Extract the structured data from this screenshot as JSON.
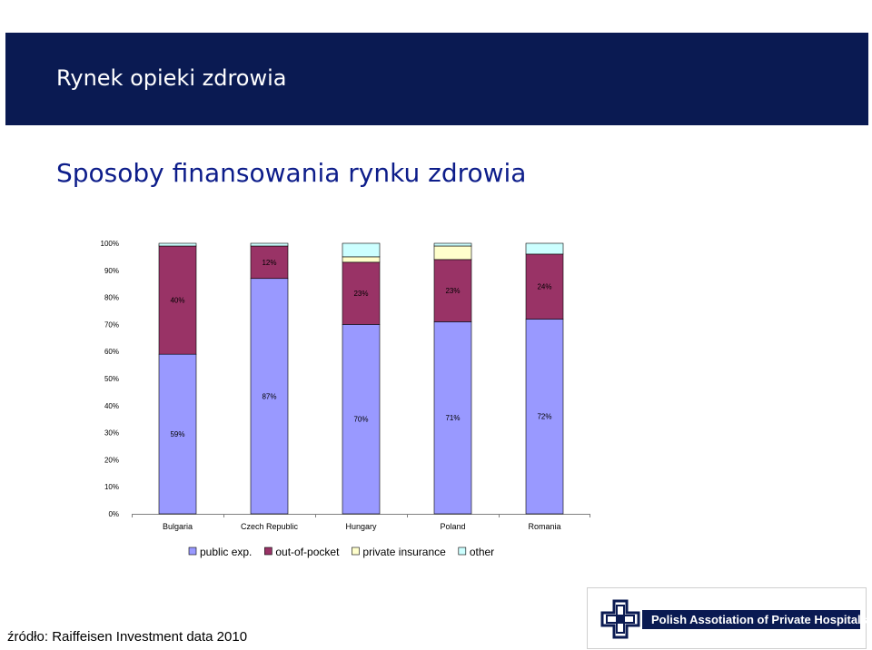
{
  "header": {
    "title": "Rynek opieki zdrowia"
  },
  "slide": {
    "subtitle": "Sposoby finansowania rynku zdrowia"
  },
  "chart_data": {
    "type": "bar",
    "stacked": true,
    "categories": [
      "Bulgaria",
      "Czech Republic",
      "Hungary",
      "Poland",
      "Romania"
    ],
    "series": [
      {
        "name": "public exp.",
        "color": "#9999ff",
        "values": [
          59,
          87,
          70,
          71,
          72
        ],
        "labels": [
          "59%",
          "87%",
          "70%",
          "71%",
          "72%"
        ]
      },
      {
        "name": "out-of-pocket",
        "color": "#993366",
        "values": [
          40,
          12,
          23,
          23,
          24
        ],
        "labels": [
          "40%",
          "12%",
          "23%",
          "23%",
          "24%"
        ]
      },
      {
        "name": "private insurance",
        "color": "#ffffcc",
        "values": [
          0,
          0,
          2,
          5,
          0
        ]
      },
      {
        "name": "other",
        "color": "#ccffff",
        "values": [
          1,
          1,
          5,
          1,
          4
        ]
      }
    ],
    "yticks": [
      "0%",
      "10%",
      "20%",
      "30%",
      "40%",
      "50%",
      "60%",
      "70%",
      "80%",
      "90%",
      "100%"
    ],
    "ylim": [
      0,
      100
    ],
    "grid": false,
    "legend": "bottom"
  },
  "footer": {
    "source": "źródło: Raiffeisen Investment data 2010",
    "logo_text": "Polish Assotiation of Private Hospitals"
  }
}
